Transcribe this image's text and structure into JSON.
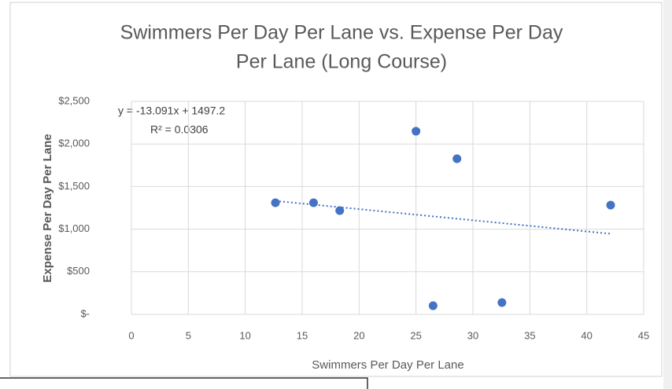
{
  "chart_data": {
    "type": "scatter",
    "title": [
      "Swimmers Per Day Per Lane vs. Expense Per Day",
      "Per Lane (Long Course)"
    ],
    "x_label": "Swimmers Per Day Per Lane",
    "y_label": "Expense Per Day Per Lane",
    "series": [
      {
        "color": "#4472c4",
        "x": [
          12.65,
          16.0,
          18.3,
          25.0,
          28.6,
          26.5,
          32.55,
          42.1
        ],
        "values": [
          1310,
          1310,
          1218,
          2150,
          1827,
          101,
          138,
          1282
        ]
      }
    ],
    "trendline": {
      "type": "linear",
      "color": "#4472c4",
      "equation": "y = -13.091x + 1497.2",
      "r_squared": "R² = 0.0306"
    },
    "xlim": [
      0,
      45
    ],
    "xticks": [
      0,
      5,
      10,
      15,
      20,
      25,
      30,
      35,
      40,
      45
    ],
    "ylim": [
      0,
      2500
    ],
    "yticks": [
      {
        "value": 0,
        "label": "$-"
      },
      {
        "value": 500,
        "label": "$500"
      },
      {
        "value": 1000,
        "label": "$1,000"
      },
      {
        "value": 1500,
        "label": "$1,500"
      },
      {
        "value": 2000,
        "label": "$2,000"
      },
      {
        "value": 2500,
        "label": "$2,500"
      }
    ],
    "grid": true
  }
}
